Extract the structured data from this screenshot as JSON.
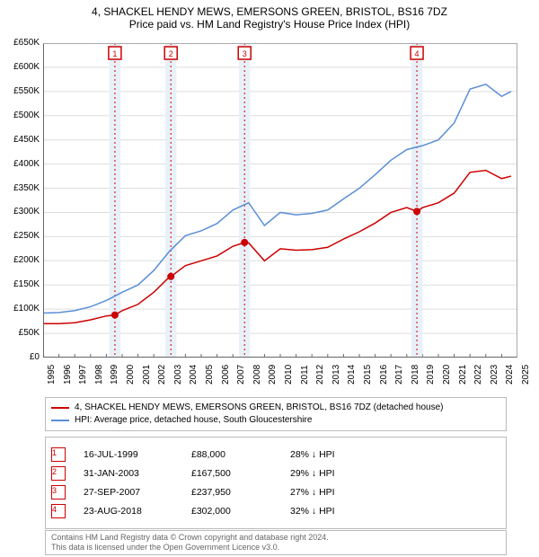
{
  "title_line1": "4, SHACKEL HENDY MEWS, EMERSONS GREEN, BRISTOL, BS16 7DZ",
  "title_line2": "Price paid vs. HM Land Registry's House Price Index (HPI)",
  "chart": {
    "type": "line",
    "background_color": "#ffffff",
    "grid_color": "#dddddd",
    "plot_border_color": "#666666",
    "x_min": 1995,
    "x_max": 2025,
    "y_min": 0,
    "y_max": 650000,
    "y_tick_step": 50000,
    "y_tick_labels": [
      "£0",
      "£50K",
      "£100K",
      "£150K",
      "£200K",
      "£250K",
      "£300K",
      "£350K",
      "£400K",
      "£450K",
      "£500K",
      "£550K",
      "£600K",
      "£650K"
    ],
    "x_ticks": [
      1995,
      1996,
      1997,
      1998,
      1999,
      2000,
      2001,
      2002,
      2003,
      2004,
      2005,
      2006,
      2007,
      2008,
      2009,
      2010,
      2011,
      2012,
      2013,
      2014,
      2015,
      2016,
      2017,
      2018,
      2019,
      2020,
      2021,
      2022,
      2023,
      2024,
      2025
    ],
    "label_fontsize": 10,
    "title_fontsize": 12,
    "series": [
      {
        "name": "red",
        "color": "#cc0000",
        "width": 1.5,
        "points": [
          [
            1995,
            70000
          ],
          [
            1996,
            70000
          ],
          [
            1997,
            72000
          ],
          [
            1998,
            78000
          ],
          [
            1999,
            86000
          ],
          [
            1999.54,
            88000
          ],
          [
            2000,
            97000
          ],
          [
            2001,
            110000
          ],
          [
            2002,
            135000
          ],
          [
            2003,
            167000
          ],
          [
            2003.08,
            167500
          ],
          [
            2004,
            190000
          ],
          [
            2005,
            200000
          ],
          [
            2006,
            210000
          ],
          [
            2007,
            230000
          ],
          [
            2007.74,
            237950
          ],
          [
            2008,
            237000
          ],
          [
            2009,
            200000
          ],
          [
            2010,
            225000
          ],
          [
            2011,
            222000
          ],
          [
            2012,
            223000
          ],
          [
            2013,
            228000
          ],
          [
            2014,
            245000
          ],
          [
            2015,
            260000
          ],
          [
            2016,
            278000
          ],
          [
            2017,
            300000
          ],
          [
            2018,
            310000
          ],
          [
            2018.64,
            302000
          ],
          [
            2019,
            310000
          ],
          [
            2020,
            320000
          ],
          [
            2021,
            340000
          ],
          [
            2022,
            383000
          ],
          [
            2023,
            387000
          ],
          [
            2024,
            370000
          ],
          [
            2024.6,
            375000
          ]
        ]
      },
      {
        "name": "blue",
        "color": "#5b8fd6",
        "width": 1.5,
        "points": [
          [
            1995,
            92000
          ],
          [
            1996,
            93000
          ],
          [
            1997,
            97000
          ],
          [
            1998,
            105000
          ],
          [
            1999,
            118000
          ],
          [
            2000,
            135000
          ],
          [
            2001,
            150000
          ],
          [
            2002,
            180000
          ],
          [
            2003,
            220000
          ],
          [
            2004,
            252000
          ],
          [
            2005,
            262000
          ],
          [
            2006,
            277000
          ],
          [
            2007,
            305000
          ],
          [
            2008,
            320000
          ],
          [
            2009,
            273000
          ],
          [
            2010,
            300000
          ],
          [
            2011,
            295000
          ],
          [
            2012,
            298000
          ],
          [
            2013,
            305000
          ],
          [
            2014,
            328000
          ],
          [
            2015,
            350000
          ],
          [
            2016,
            378000
          ],
          [
            2017,
            408000
          ],
          [
            2018,
            430000
          ],
          [
            2019,
            438000
          ],
          [
            2020,
            450000
          ],
          [
            2021,
            485000
          ],
          [
            2022,
            555000
          ],
          [
            2023,
            565000
          ],
          [
            2024,
            540000
          ],
          [
            2024.6,
            550000
          ]
        ]
      }
    ],
    "markers": [
      {
        "n": "1",
        "x": 1999.54,
        "y": 88000,
        "color": "#cc0000"
      },
      {
        "n": "2",
        "x": 2003.08,
        "y": 167500,
        "color": "#cc0000"
      },
      {
        "n": "3",
        "x": 2007.74,
        "y": 237950,
        "color": "#cc0000"
      },
      {
        "n": "4",
        "x": 2018.64,
        "y": 302000,
        "color": "#cc0000"
      }
    ],
    "marker_box_color": "#cc0000",
    "band_color": "#e8f0f8",
    "band_half_width_years": 0.35
  },
  "legend": {
    "items": [
      {
        "color": "#cc0000",
        "label": "4, SHACKEL HENDY MEWS, EMERSONS GREEN, BRISTOL, BS16 7DZ (detached house)"
      },
      {
        "color": "#5b8fd6",
        "label": "HPI: Average price, detached house, South Gloucestershire"
      }
    ]
  },
  "table": {
    "rows": [
      {
        "n": "1",
        "date": "16-JUL-1999",
        "price": "£88,000",
        "pct": "28% ↓ HPI"
      },
      {
        "n": "2",
        "date": "31-JAN-2003",
        "price": "£167,500",
        "pct": "29% ↓ HPI"
      },
      {
        "n": "3",
        "date": "27-SEP-2007",
        "price": "£237,950",
        "pct": "27% ↓ HPI"
      },
      {
        "n": "4",
        "date": "23-AUG-2018",
        "price": "£302,000",
        "pct": "32% ↓ HPI"
      }
    ]
  },
  "footer_line1": "Contains HM Land Registry data © Crown copyright and database right 2024.",
  "footer_line2": "This data is licensed under the Open Government Licence v3.0."
}
